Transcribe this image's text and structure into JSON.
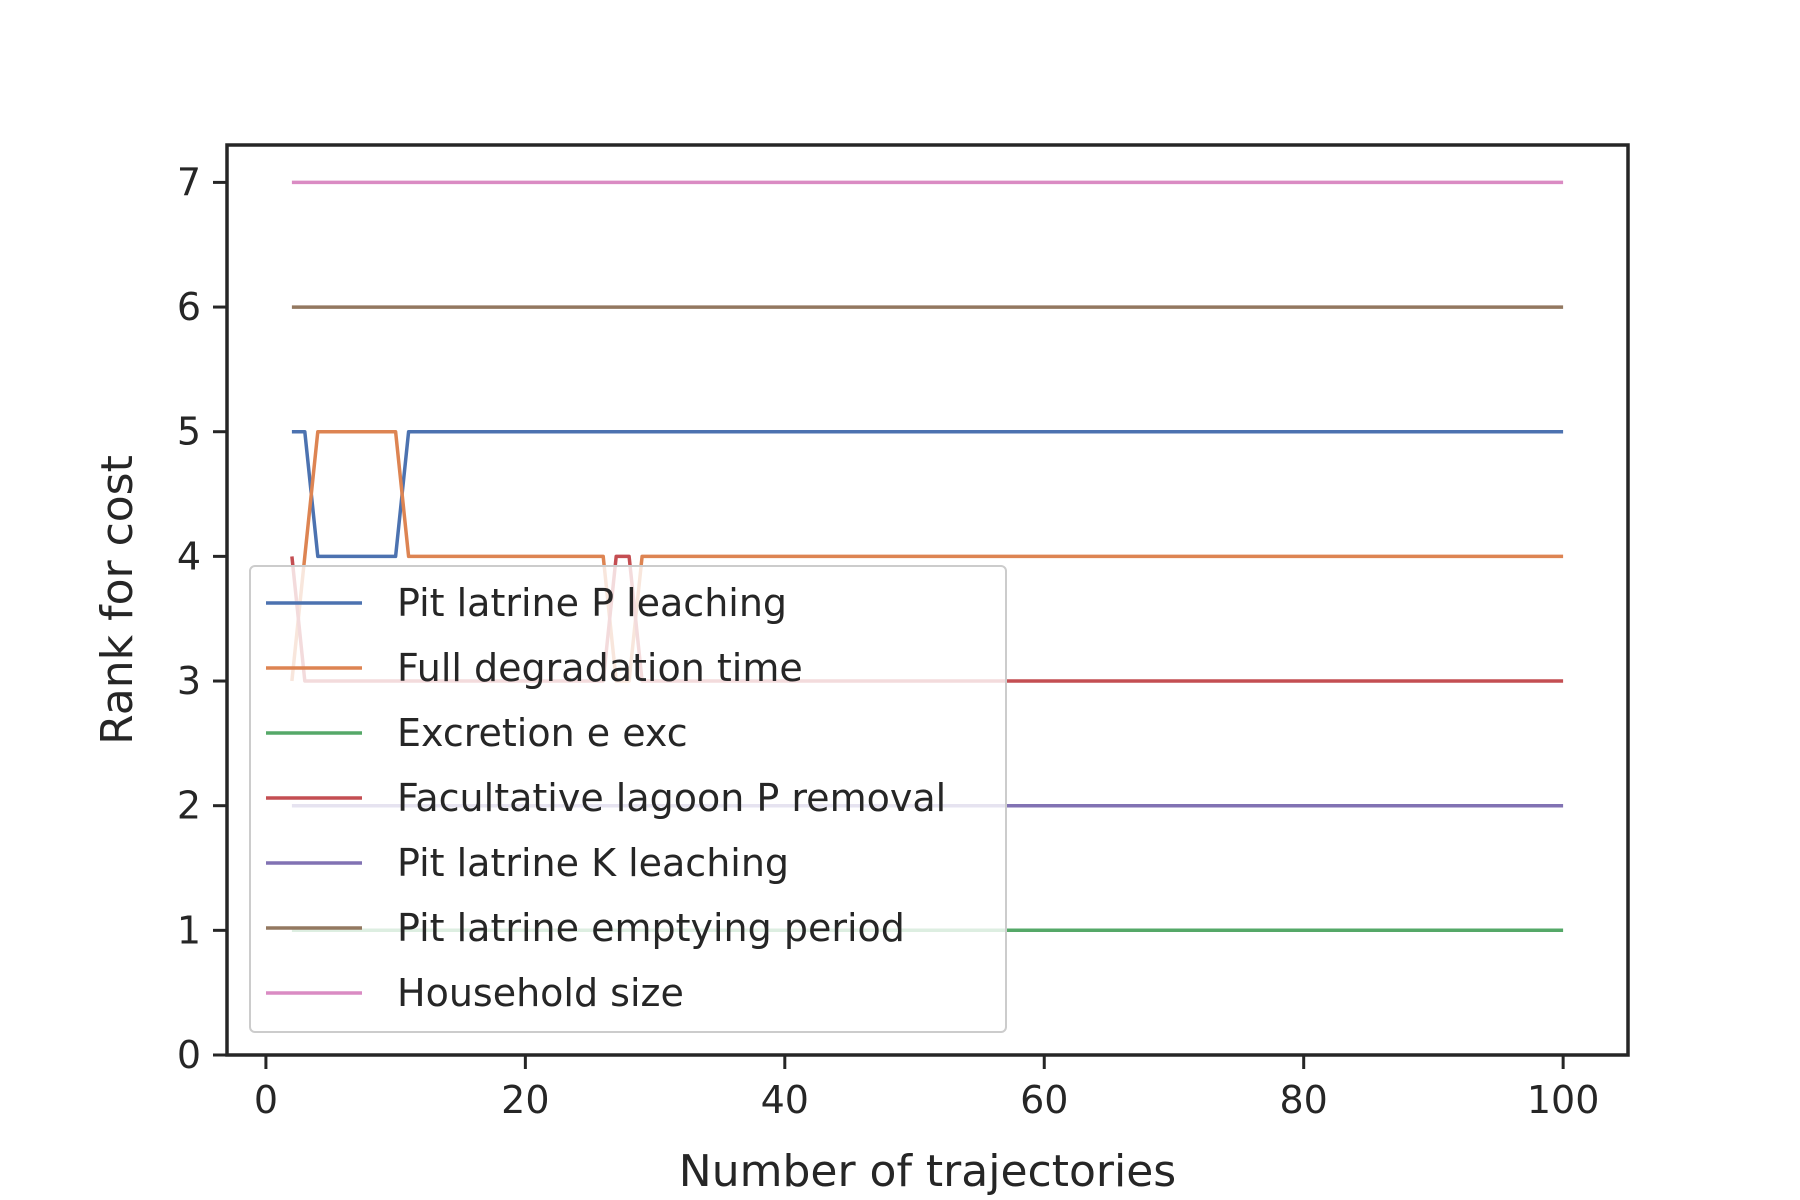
{
  "chart_data": {
    "type": "line",
    "title": "",
    "xlabel": "Number of trajectories",
    "ylabel": "Rank for cost",
    "xlim": [
      -3,
      105
    ],
    "ylim": [
      0,
      7.3
    ],
    "xticks": [
      0,
      20,
      40,
      60,
      80,
      100
    ],
    "yticks": [
      0,
      1,
      2,
      3,
      4,
      5,
      6,
      7
    ],
    "grid": false,
    "legend_position": "lower-left",
    "series": [
      {
        "name": "Pit latrine P leaching",
        "color": "#4c72b0",
        "points": [
          [
            2,
            5
          ],
          [
            3,
            5
          ],
          [
            4,
            4
          ],
          [
            10,
            4
          ],
          [
            11,
            5
          ],
          [
            100,
            5
          ]
        ]
      },
      {
        "name": "Full degradation time",
        "color": "#dd8452",
        "points": [
          [
            2,
            3
          ],
          [
            3,
            4
          ],
          [
            4,
            5
          ],
          [
            10,
            5
          ],
          [
            11,
            4
          ],
          [
            26,
            4
          ],
          [
            27,
            3
          ],
          [
            28,
            3
          ],
          [
            29,
            4
          ],
          [
            100,
            4
          ]
        ]
      },
      {
        "name": "Excretion e exc",
        "color": "#55a868",
        "points": [
          [
            2,
            1
          ],
          [
            100,
            1
          ]
        ]
      },
      {
        "name": "Facultative lagoon P removal",
        "color": "#c44e52",
        "points": [
          [
            2,
            4
          ],
          [
            3,
            3
          ],
          [
            26,
            3
          ],
          [
            27,
            4
          ],
          [
            28,
            4
          ],
          [
            29,
            3
          ],
          [
            100,
            3
          ]
        ]
      },
      {
        "name": "Pit latrine K leaching",
        "color": "#8172b3",
        "points": [
          [
            2,
            2
          ],
          [
            100,
            2
          ]
        ]
      },
      {
        "name": "Pit latrine emptying period",
        "color": "#937860",
        "points": [
          [
            2,
            6
          ],
          [
            100,
            6
          ]
        ]
      },
      {
        "name": "Household size",
        "color": "#da8bc3",
        "points": [
          [
            2,
            7
          ],
          [
            100,
            7
          ]
        ]
      }
    ]
  }
}
